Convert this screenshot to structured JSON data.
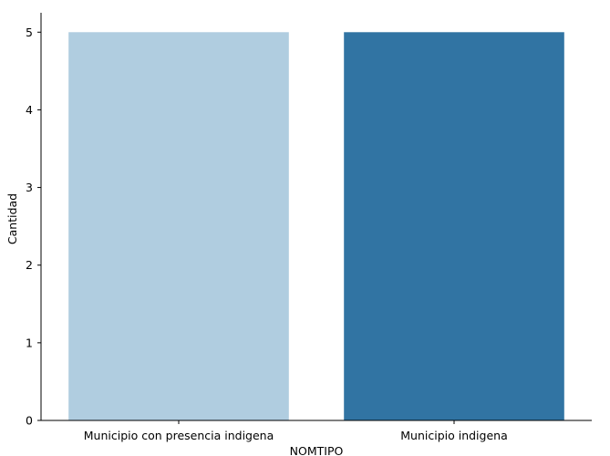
{
  "chart_data": {
    "type": "bar",
    "categories": [
      "Municipio con presencia indigena",
      "Municipio indigena"
    ],
    "values": [
      5,
      5
    ],
    "colors": [
      "#b0cde0",
      "#3174a3"
    ],
    "xlabel": "NOMTIPO",
    "ylabel": "Cantidad",
    "ylim": [
      0,
      5.25
    ],
    "yticks": [
      0,
      1,
      2,
      3,
      4,
      5
    ],
    "grid": false,
    "legend": "none"
  }
}
